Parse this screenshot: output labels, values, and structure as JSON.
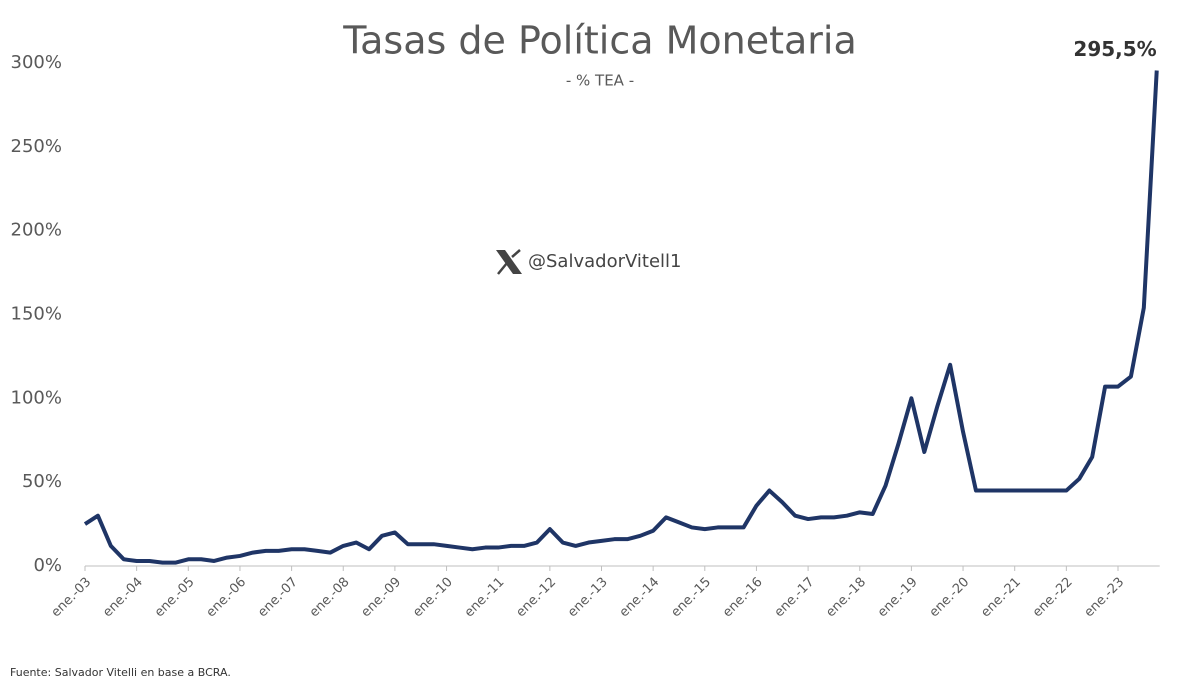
{
  "chart_data": {
    "type": "line",
    "title": "Tasas de Política Monetaria",
    "subtitle": "- % TEA -",
    "watermark": "@SalvadorVitell1",
    "source": "Fuente: Salvador Vitelli en base a BCRA.",
    "categories": [
      "ene.-03",
      null,
      null,
      null,
      "ene.-04",
      null,
      null,
      null,
      "ene.-05",
      null,
      null,
      null,
      "ene.-06",
      null,
      null,
      null,
      "ene.-07",
      null,
      null,
      null,
      "ene.-08",
      null,
      null,
      null,
      "ene.-09",
      null,
      null,
      null,
      "ene.-10",
      null,
      null,
      null,
      "ene.-11",
      null,
      null,
      null,
      "ene.-12",
      null,
      null,
      null,
      "ene.-13",
      null,
      null,
      null,
      "ene.-14",
      null,
      null,
      null,
      "ene.-15",
      null,
      null,
      null,
      "ene.-16",
      null,
      null,
      null,
      "ene.-17",
      null,
      null,
      null,
      "ene.-18",
      null,
      null,
      null,
      "ene.-19",
      null,
      null,
      null,
      "ene.-20",
      null,
      null,
      null,
      "ene.-21",
      null,
      null,
      null,
      "ene.-22",
      null,
      null,
      null,
      "ene.-23",
      null,
      null,
      null
    ],
    "series": [
      {
        "name": "Tasa de política monetaria",
        "color": "#1f3566",
        "values": [
          25,
          30,
          12,
          4,
          3,
          3,
          2,
          2,
          4,
          4,
          3,
          5,
          6,
          8,
          9,
          9,
          10,
          10,
          9,
          8,
          12,
          14,
          10,
          18,
          20,
          13,
          13,
          13,
          12,
          11,
          10,
          11,
          11,
          12,
          12,
          14,
          22,
          14,
          12,
          14,
          15,
          16,
          16,
          18,
          21,
          29,
          26,
          23,
          22,
          23,
          23,
          23,
          36,
          45,
          38,
          30,
          28,
          29,
          29,
          30,
          32,
          31,
          48,
          73,
          100,
          68,
          95,
          120,
          80,
          45,
          45,
          45,
          45,
          45,
          45,
          45,
          45,
          52,
          65,
          107,
          107,
          113,
          154,
          295.5
        ],
        "value_labels": [
          null,
          null,
          null,
          null,
          null,
          null,
          null,
          null,
          null,
          null,
          null,
          null,
          null,
          null,
          null,
          null,
          null,
          null,
          null,
          null,
          null,
          null,
          null,
          null,
          null,
          null,
          null,
          null,
          null,
          null,
          null,
          null,
          null,
          null,
          null,
          null,
          null,
          null,
          null,
          null,
          null,
          null,
          null,
          null,
          null,
          null,
          null,
          null,
          null,
          null,
          null,
          null,
          null,
          null,
          null,
          null,
          null,
          null,
          null,
          null,
          null,
          null,
          null,
          null,
          null,
          null,
          null,
          null,
          null,
          null,
          null,
          null,
          null,
          null,
          null,
          null,
          null,
          null,
          null,
          null,
          null,
          null,
          null,
          "295,5%"
        ]
      }
    ],
    "ylim": [
      0,
      300
    ],
    "yticks": [
      {
        "value": 0,
        "label": "0%"
      },
      {
        "value": 50,
        "label": "50%"
      },
      {
        "value": 100,
        "label": "100%"
      },
      {
        "value": 150,
        "label": "150%"
      },
      {
        "value": 200,
        "label": "200%"
      },
      {
        "value": 250,
        "label": "250%"
      },
      {
        "value": 300,
        "label": "300%"
      }
    ],
    "grid": false
  }
}
